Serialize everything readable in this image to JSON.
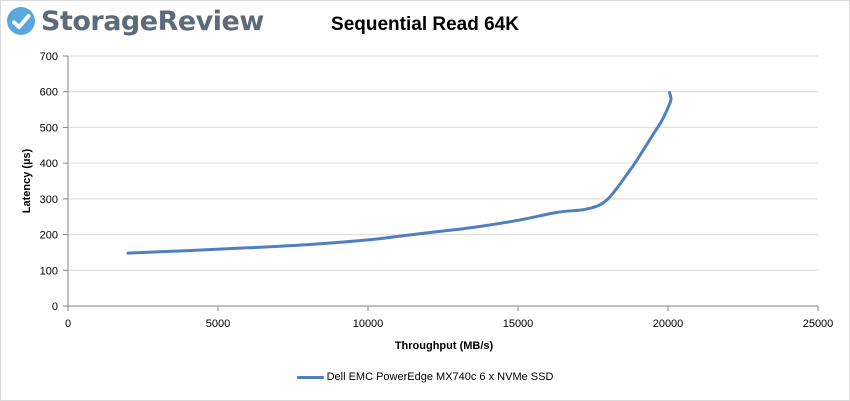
{
  "brand": {
    "name": "StorageReview",
    "color": "#5c6a7a",
    "icon": "storagereview-logo-icon"
  },
  "chart_data": {
    "type": "line",
    "title": "Sequential Read 64K",
    "xlabel": "Throughput (MB/s)",
    "ylabel": "Latency (µs)",
    "xlim": [
      0,
      25000
    ],
    "ylim": [
      0,
      700
    ],
    "xticks": [
      0,
      5000,
      10000,
      15000,
      20000,
      25000
    ],
    "yticks": [
      0,
      100,
      200,
      300,
      400,
      500,
      600,
      700
    ],
    "grid": true,
    "legend_position": "bottom",
    "series": [
      {
        "name": "Dell EMC PowerEdge MX740c 6 x NVMe SSD",
        "color": "#4f7fc0",
        "x": [
          2000,
          4000,
          6000,
          8000,
          10000,
          11000,
          12000,
          13500,
          15000,
          16300,
          17200,
          17700,
          18000,
          18300,
          18600,
          18900,
          19200,
          19500,
          19800,
          20050,
          20100,
          20050
        ],
        "y": [
          148,
          155,
          163,
          172,
          185,
          195,
          205,
          220,
          240,
          262,
          270,
          282,
          300,
          330,
          365,
          400,
          440,
          480,
          520,
          565,
          580,
          598
        ]
      }
    ]
  }
}
